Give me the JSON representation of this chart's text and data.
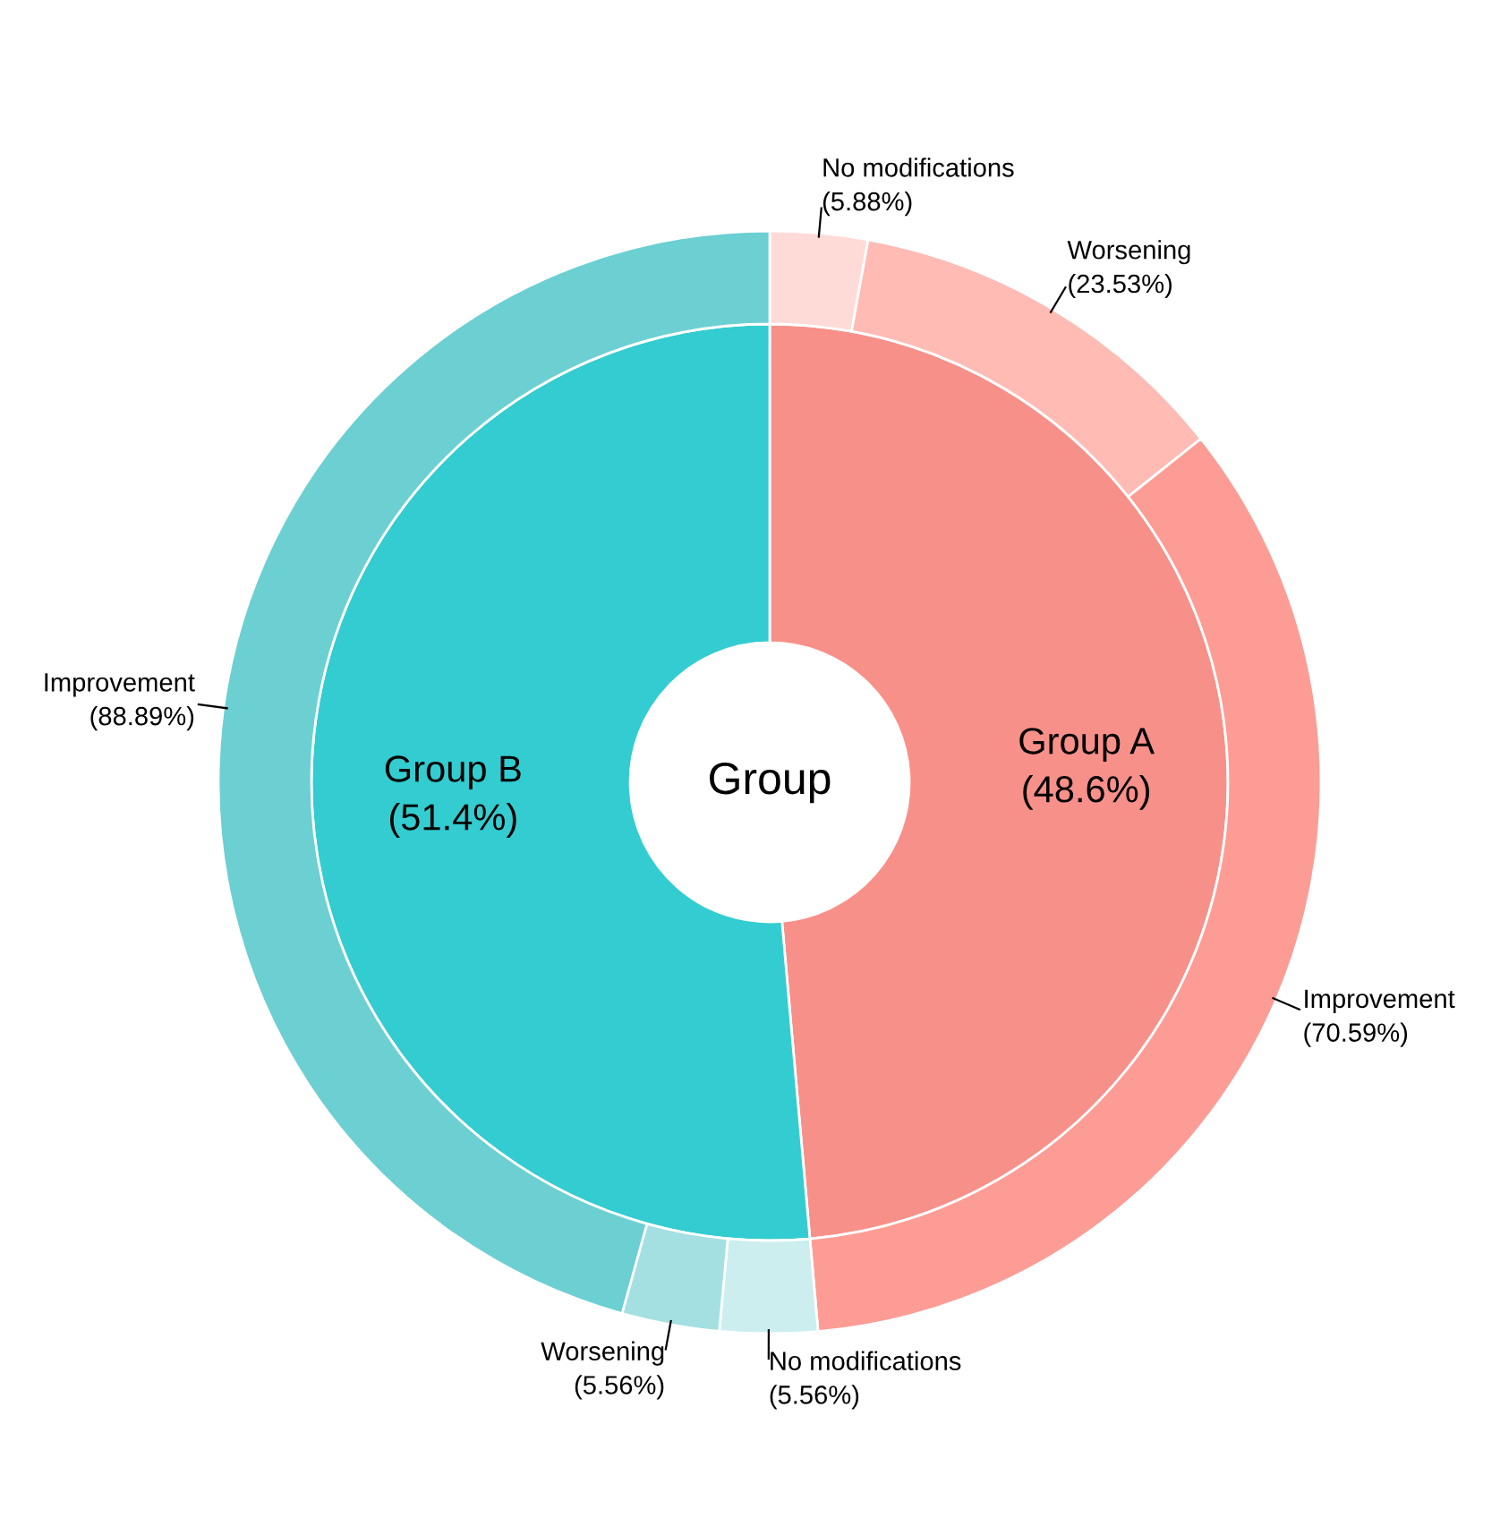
{
  "chart_data": {
    "type": "other",
    "title": "Group",
    "categories": [
      "Group A",
      "Group B"
    ],
    "values": [
      48.6,
      51.4
    ],
    "value_labels": [
      "(48.6%)",
      "(51.4%)"
    ],
    "colors": [
      "#f8908a",
      "#33ccd0"
    ],
    "series": [
      {
        "name": "No modifications",
        "values": [
          5.88,
          5.56
        ],
        "value_labels": [
          "(5.88%)",
          "(5.56%)"
        ],
        "colors": [
          "#ffdbd8",
          "#cdeeef"
        ]
      },
      {
        "name": "Worsening",
        "values": [
          23.53,
          5.56
        ],
        "value_labels": [
          "(23.53%)",
          "(5.56%)"
        ],
        "colors": [
          "#ffbbb4",
          "#a4e0e1"
        ]
      },
      {
        "name": "Improvement",
        "values": [
          70.59,
          88.89
        ],
        "value_labels": [
          "(70.59%)",
          "(88.89%)"
        ],
        "colors": [
          "#fd9c95",
          "#6ccfd2"
        ]
      }
    ]
  }
}
